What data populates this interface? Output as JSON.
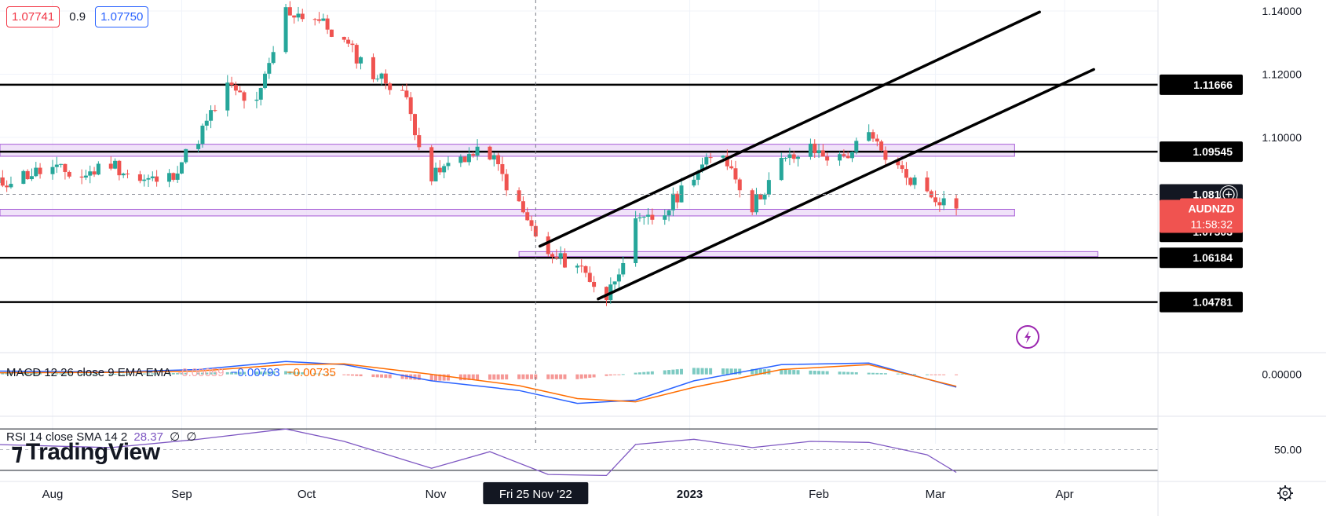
{
  "header": {
    "bid": "1.07741",
    "spread": "0.9",
    "ask": "1.07750"
  },
  "indicators": {
    "macd": {
      "label": "MACD 12 26 close 9 EMA EMA",
      "hist_value": "-0.00059",
      "macd_value": "−0.00793",
      "signal_value": "−0.00735"
    },
    "rsi": {
      "label": "RSI 14 close SMA 14 2",
      "value": "28.37",
      "v2": "∅",
      "v3": "∅"
    }
  },
  "branding": {
    "logo_text": "TradingView"
  },
  "symbol": {
    "name": "AUDNZD",
    "last_price": "1.07744",
    "countdown": "11:58:32"
  },
  "crosshair": {
    "price_label": "1.08192",
    "date_label": "Fri 25 Nov '22"
  },
  "colors": {
    "up": "#26a69a",
    "down": "#ef5350",
    "zone_fill": "#e9d5f7",
    "zone_stroke": "#a55ad6",
    "macd": "#2962ff",
    "signal": "#ff6d00",
    "rsi": "#7e57c2",
    "hist_pos": "#26a69a",
    "hist_neg": "#ef5350"
  },
  "chart_data": {
    "type": "candlestick",
    "symbol": "AUDNZD",
    "ylim": [
      1.041,
      1.143
    ],
    "price_ticks": [
      "1.14000",
      "1.12000",
      "1.10000"
    ],
    "horizontal_levels": [
      {
        "price": 1.11666,
        "label": "1.11666"
      },
      {
        "price": 1.09545,
        "label": "1.09545"
      },
      {
        "price": 1.07503,
        "label": "1.07503"
      },
      {
        "price": 1.06184,
        "label": "1.06184"
      },
      {
        "price": 1.04781,
        "label": "1.04781"
      }
    ],
    "zones": [
      {
        "from_date": "2022-07-18",
        "to_date": "2023-03-20",
        "low": 1.094,
        "high": 1.0978
      },
      {
        "from_date": "2022-07-18",
        "to_date": "2023-03-20",
        "low": 1.0751,
        "high": 1.0772
      },
      {
        "from_date": "2022-11-21",
        "to_date": "2023-04-09",
        "low": 1.0622,
        "high": 1.0638
      }
    ],
    "trend_lines": [
      {
        "from": [
          "2022-11-26",
          1.0655
        ],
        "to": [
          "2023-03-26",
          1.1397
        ]
      },
      {
        "from": [
          "2022-12-10",
          1.0488
        ],
        "to": [
          "2023-04-08",
          1.1215
        ]
      }
    ],
    "x_ticks": [
      {
        "date": "2022-08-01",
        "label": "Aug"
      },
      {
        "date": "2022-09-01",
        "label": "Sep"
      },
      {
        "date": "2022-10-01",
        "label": "Oct"
      },
      {
        "date": "2022-11-01",
        "label": "Nov"
      },
      {
        "date": "2023-01-01",
        "label": "2023"
      },
      {
        "date": "2023-02-01",
        "label": "Feb"
      },
      {
        "date": "2023-03-01",
        "label": "Mar"
      },
      {
        "date": "2023-04-01",
        "label": "Apr"
      }
    ],
    "crosshair_date": "2022-11-25",
    "crosshair_price": 1.08192,
    "last_price": 1.07744,
    "close_path": [
      [
        "2022-07-18",
        1.0848
      ],
      [
        "2022-07-25",
        1.088
      ],
      [
        "2022-08-01",
        1.09
      ],
      [
        "2022-08-08",
        1.0875
      ],
      [
        "2022-08-15",
        1.092
      ],
      [
        "2022-08-22",
        1.086
      ],
      [
        "2022-08-29",
        1.087
      ],
      [
        "2022-09-05",
        1.1
      ],
      [
        "2022-09-12",
        1.116
      ],
      [
        "2022-09-19",
        1.11
      ],
      [
        "2022-09-26",
        1.14
      ],
      [
        "2022-10-03",
        1.138
      ],
      [
        "2022-10-10",
        1.13
      ],
      [
        "2022-10-17",
        1.12
      ],
      [
        "2022-10-24",
        1.115
      ],
      [
        "2022-10-31",
        1.087
      ],
      [
        "2022-11-07",
        1.094
      ],
      [
        "2022-11-14",
        1.095
      ],
      [
        "2022-11-21",
        1.078
      ],
      [
        "2022-11-28",
        1.062
      ],
      [
        "2022-12-05",
        1.06
      ],
      [
        "2022-12-12",
        1.049
      ],
      [
        "2022-12-19",
        1.072
      ],
      [
        "2022-12-26",
        1.076
      ],
      [
        "2023-01-02",
        1.089
      ],
      [
        "2023-01-09",
        1.095
      ],
      [
        "2023-01-16",
        1.078
      ],
      [
        "2023-01-23",
        1.092
      ],
      [
        "2023-01-30",
        1.096
      ],
      [
        "2023-02-06",
        1.093
      ],
      [
        "2023-02-13",
        1.1
      ],
      [
        "2023-02-20",
        1.09
      ],
      [
        "2023-02-27",
        1.083
      ],
      [
        "2023-03-06",
        1.0774
      ]
    ],
    "macd": {
      "zero_label": "0.00000",
      "range": [
        -0.025,
        0.012
      ],
      "macd_path": [
        [
          "2022-07-18",
          0.002
        ],
        [
          "2022-08-15",
          0.0015
        ],
        [
          "2022-09-05",
          0.003
        ],
        [
          "2022-09-26",
          0.008
        ],
        [
          "2022-10-10",
          0.006
        ],
        [
          "2022-10-31",
          -0.004
        ],
        [
          "2022-11-21",
          -0.01
        ],
        [
          "2022-12-05",
          -0.018
        ],
        [
          "2022-12-19",
          -0.016
        ],
        [
          "2023-01-02",
          -0.004
        ],
        [
          "2023-01-23",
          0.006
        ],
        [
          "2023-02-13",
          0.007
        ],
        [
          "2023-03-06",
          -0.0079
        ]
      ],
      "signal_path": [
        [
          "2022-07-18",
          0.001
        ],
        [
          "2022-08-15",
          0.0012
        ],
        [
          "2022-09-05",
          0.002
        ],
        [
          "2022-09-26",
          0.006
        ],
        [
          "2022-10-10",
          0.0065
        ],
        [
          "2022-10-31",
          0.0
        ],
        [
          "2022-11-21",
          -0.007
        ],
        [
          "2022-12-05",
          -0.015
        ],
        [
          "2022-12-19",
          -0.017
        ],
        [
          "2023-01-02",
          -0.008
        ],
        [
          "2023-01-23",
          0.003
        ],
        [
          "2023-02-13",
          0.006
        ],
        [
          "2023-03-06",
          -0.0074
        ]
      ]
    },
    "rsi": {
      "level_label": "50.00",
      "range": [
        20,
        80
      ],
      "bands": [
        70,
        50,
        30
      ],
      "path": [
        [
          "2022-07-18",
          55
        ],
        [
          "2022-08-15",
          52
        ],
        [
          "2022-09-05",
          60
        ],
        [
          "2022-09-26",
          70
        ],
        [
          "2022-10-10",
          58
        ],
        [
          "2022-10-31",
          32
        ],
        [
          "2022-11-14",
          48
        ],
        [
          "2022-11-28",
          26
        ],
        [
          "2022-12-12",
          25
        ],
        [
          "2022-12-19",
          55
        ],
        [
          "2023-01-02",
          60
        ],
        [
          "2023-01-16",
          52
        ],
        [
          "2023-01-30",
          58
        ],
        [
          "2023-02-13",
          57
        ],
        [
          "2023-02-27",
          45
        ],
        [
          "2023-03-06",
          28
        ]
      ]
    }
  }
}
